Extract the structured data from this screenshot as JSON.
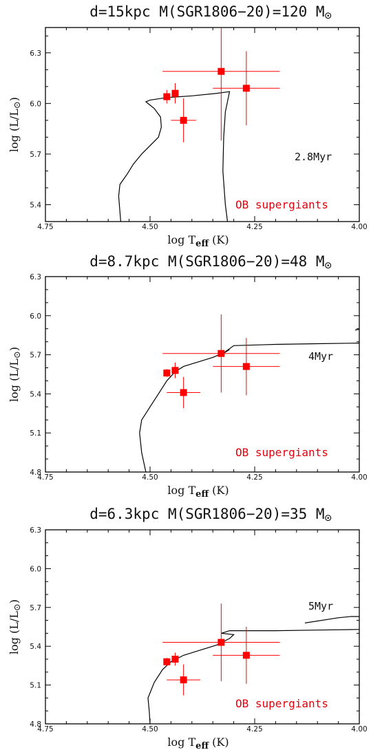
{
  "colors": {
    "data_points": "#ff0000",
    "label_red": "#e8000b",
    "frame": "#000000"
  },
  "chart_data": [
    {
      "type": "scatter",
      "title": "d=15kpc M(SGR1806−20)=120 M",
      "title_symbol": "⊙",
      "xlabel": "log T",
      "xlabel_sub": "eff",
      "xlabel_unit": "(K)",
      "ylabel": "log (L/L",
      "ylabel_symbol": "⊙",
      "ylabel_close": ")",
      "xlim": [
        4.75,
        4.0
      ],
      "ylim": [
        5.3,
        6.45
      ],
      "x_ticks": [
        4.75,
        4.5,
        4.25,
        4.0
      ],
      "x_tick_labels": [
        "4.75",
        "4.50",
        "4.25",
        "4.00"
      ],
      "y_ticks": [
        5.4,
        5.7,
        6.0,
        6.3
      ],
      "y_tick_labels": [
        "5.4",
        "5.7",
        "6.0",
        "6.3"
      ],
      "annotation": "2.8Myr",
      "legend_text": "OB supergiants",
      "points": [
        {
          "x": 4.46,
          "y": 6.04,
          "xerr": 0.0,
          "yerr": 0.04
        },
        {
          "x": 4.44,
          "y": 6.06,
          "xerr": 0.0,
          "yerr": 0.06
        },
        {
          "x": 4.42,
          "y": 5.9,
          "xerr": 0.03,
          "yerr": 0.13
        },
        {
          "x": 4.33,
          "y": 6.19,
          "xerr": 0.14,
          "yerr": 0.41
        },
        {
          "x": 4.27,
          "y": 6.09,
          "xerr": 0.08,
          "yerr": 0.22
        }
      ],
      "isochrone": [
        [
          4.57,
          5.3
        ],
        [
          4.575,
          5.45
        ],
        [
          4.572,
          5.52
        ],
        [
          4.555,
          5.58
        ],
        [
          4.54,
          5.64
        ],
        [
          4.52,
          5.7
        ],
        [
          4.5,
          5.75
        ],
        [
          4.48,
          5.8
        ],
        [
          4.473,
          5.86
        ],
        [
          4.475,
          5.92
        ],
        [
          4.49,
          5.97
        ],
        [
          4.51,
          6.01
        ],
        [
          4.5,
          6.02
        ],
        [
          4.46,
          6.035
        ],
        [
          4.4,
          6.045
        ],
        [
          4.34,
          6.06
        ],
        [
          4.31,
          6.07
        ],
        [
          4.32,
          5.95
        ],
        [
          4.324,
          5.8
        ],
        [
          4.326,
          5.6
        ],
        [
          4.32,
          5.4
        ],
        [
          4.315,
          5.3
        ]
      ]
    },
    {
      "type": "scatter",
      "title": "d=8.7kpc M(SGR1806−20)=48 M",
      "title_symbol": "⊙",
      "xlabel": "log T",
      "xlabel_sub": "eff",
      "xlabel_unit": "(K)",
      "ylabel": "log (L/L",
      "ylabel_symbol": "⊙",
      "ylabel_close": ")",
      "xlim": [
        4.75,
        4.0
      ],
      "ylim": [
        4.8,
        6.3
      ],
      "x_ticks": [
        4.75,
        4.5,
        4.25,
        4.0
      ],
      "x_tick_labels": [
        "4.75",
        "4.50",
        "4.25",
        "4.00"
      ],
      "y_ticks": [
        4.8,
        5.1,
        5.4,
        5.7,
        6.0,
        6.3
      ],
      "y_tick_labels": [
        "4.8",
        "5.1",
        "5.4",
        "5.7",
        "6.0",
        "6.3"
      ],
      "annotation": "4Myr",
      "legend_text": "OB supergiants",
      "points": [
        {
          "x": 4.46,
          "y": 5.56,
          "xerr": 0.0,
          "yerr": 0.03
        },
        {
          "x": 4.44,
          "y": 5.58,
          "xerr": 0.0,
          "yerr": 0.06
        },
        {
          "x": 4.42,
          "y": 5.41,
          "xerr": 0.04,
          "yerr": 0.12
        },
        {
          "x": 4.33,
          "y": 5.71,
          "xerr": 0.14,
          "yerr": 0.3
        },
        {
          "x": 4.27,
          "y": 5.61,
          "xerr": 0.08,
          "yerr": 0.22
        }
      ],
      "isochrone": [
        [
          4.51,
          4.8
        ],
        [
          4.52,
          4.95
        ],
        [
          4.525,
          5.1
        ],
        [
          4.52,
          5.2
        ],
        [
          4.5,
          5.3
        ],
        [
          4.48,
          5.4
        ],
        [
          4.46,
          5.5
        ],
        [
          4.44,
          5.57
        ],
        [
          4.42,
          5.61
        ],
        [
          4.38,
          5.65
        ],
        [
          4.35,
          5.68
        ],
        [
          4.32,
          5.72
        ],
        [
          4.31,
          5.74
        ],
        [
          4.33,
          5.7
        ],
        [
          4.3,
          5.77
        ],
        [
          4.2,
          5.78
        ],
        [
          4.1,
          5.785
        ],
        [
          4.0,
          5.79
        ]
      ],
      "isochrone_extra": [
        [
          4.01,
          5.89
        ],
        [
          4.0,
          5.895
        ]
      ]
    },
    {
      "type": "scatter",
      "title": "d=6.3kpc M(SGR1806−20)=35 M",
      "title_symbol": "⊙",
      "xlabel": "log T",
      "xlabel_sub": "eff",
      "xlabel_unit": "(K)",
      "ylabel": "log (L/L",
      "ylabel_symbol": "⊙",
      "ylabel_close": ")",
      "xlim": [
        4.75,
        4.0
      ],
      "ylim": [
        4.8,
        6.3
      ],
      "x_ticks": [
        4.75,
        4.5,
        4.25,
        4.0
      ],
      "x_tick_labels": [
        "4.75",
        "4.50",
        "4.25",
        "4.00"
      ],
      "y_ticks": [
        4.8,
        5.1,
        5.4,
        5.7,
        6.0,
        6.3
      ],
      "y_tick_labels": [
        "4.8",
        "5.1",
        "5.4",
        "5.7",
        "6.0",
        "6.3"
      ],
      "annotation": "5Myr",
      "legend_text": "OB supergiants",
      "points": [
        {
          "x": 4.46,
          "y": 5.28,
          "xerr": 0.0,
          "yerr": 0.03
        },
        {
          "x": 4.44,
          "y": 5.3,
          "xerr": 0.0,
          "yerr": 0.05
        },
        {
          "x": 4.42,
          "y": 5.14,
          "xerr": 0.04,
          "yerr": 0.12
        },
        {
          "x": 4.33,
          "y": 5.43,
          "xerr": 0.14,
          "yerr": 0.3
        },
        {
          "x": 4.27,
          "y": 5.33,
          "xerr": 0.08,
          "yerr": 0.22
        }
      ],
      "isochrone": [
        [
          4.5,
          4.8
        ],
        [
          4.502,
          4.9
        ],
        [
          4.505,
          5.0
        ],
        [
          4.49,
          5.12
        ],
        [
          4.47,
          5.22
        ],
        [
          4.45,
          5.28
        ],
        [
          4.42,
          5.33
        ],
        [
          4.38,
          5.37
        ],
        [
          4.34,
          5.41
        ],
        [
          4.31,
          5.46
        ],
        [
          4.3,
          5.49
        ],
        [
          4.33,
          5.5
        ],
        [
          4.31,
          5.52
        ],
        [
          4.2,
          5.52
        ],
        [
          4.1,
          5.525
        ],
        [
          4.0,
          5.53
        ]
      ],
      "isochrone_extra": [
        [
          4.13,
          5.58
        ],
        [
          4.05,
          5.62
        ],
        [
          4.02,
          5.63
        ],
        [
          4.0,
          5.63
        ]
      ]
    }
  ]
}
